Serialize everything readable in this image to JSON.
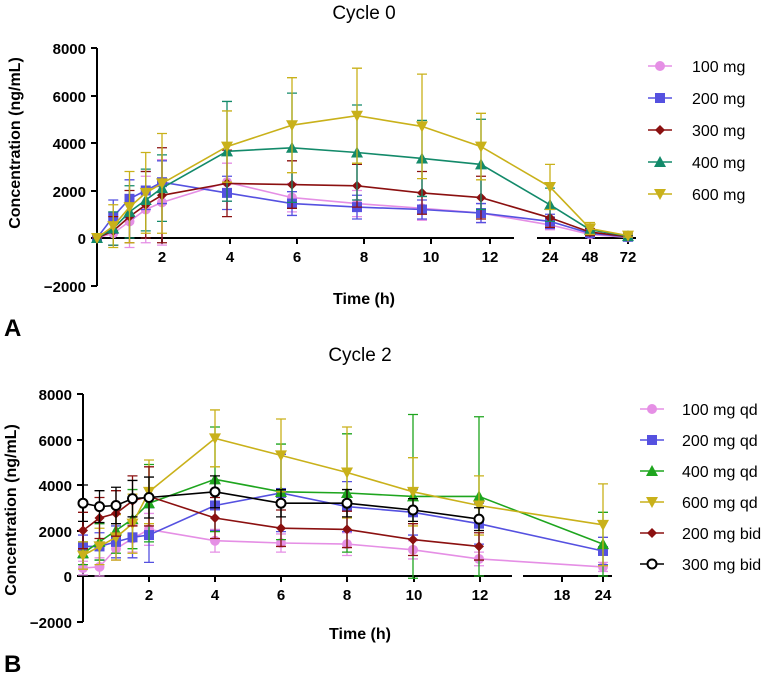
{
  "chart_data": [
    {
      "type": "line",
      "panel_label": "A",
      "title": "Cycle 0",
      "xlabel": "Time (h)",
      "ylabel": "Concentration (ng/mL)",
      "ylim": [
        -2000,
        8000
      ],
      "y_ticks": [
        "8000",
        "6000",
        "4000",
        "2000",
        "0",
        "−2000"
      ],
      "y_tick_values": [
        8000,
        6000,
        4000,
        2000,
        0,
        -2000
      ],
      "x_segments": [
        {
          "range": [
            0,
            13
          ],
          "ticks": [
            2,
            4,
            6,
            8,
            10,
            12
          ],
          "tick_labels": [
            "2",
            "4",
            "6",
            "8",
            "10",
            "12"
          ]
        },
        {
          "points": [
            24,
            48,
            72
          ],
          "tick_labels": [
            "24",
            "48",
            "72"
          ]
        }
      ],
      "series": [
        {
          "name": "100 mg",
          "color": "#e58fe5",
          "marker": "circle",
          "x": [
            0,
            0.5,
            1,
            1.5,
            2,
            4,
            6,
            8,
            10,
            12,
            24,
            48,
            72
          ],
          "y": [
            0,
            200,
            700,
            1200,
            1500,
            2350,
            1700,
            1450,
            1250,
            1050,
            550,
            150,
            30
          ],
          "err": [
            0,
            500,
            1100,
            1400,
            1800,
            800,
            600,
            550,
            500,
            400,
            200,
            80,
            20
          ]
        },
        {
          "name": "200 mg",
          "color": "#5551e0",
          "marker": "square",
          "x": [
            0,
            0.5,
            1,
            1.5,
            2,
            4,
            6,
            8,
            10,
            12,
            24,
            48,
            72
          ],
          "y": [
            0,
            900,
            1650,
            2000,
            2350,
            1900,
            1450,
            1300,
            1200,
            1050,
            700,
            200,
            50
          ],
          "err": [
            0,
            700,
            800,
            800,
            900,
            700,
            500,
            500,
            400,
            400,
            300,
            100,
            30
          ]
        },
        {
          "name": "300 mg",
          "color": "#8b1010",
          "marker": "diamond",
          "x": [
            0,
            0.5,
            1,
            1.5,
            2,
            4,
            6,
            8,
            10,
            12,
            24,
            48,
            72
          ],
          "y": [
            0,
            300,
            900,
            1400,
            1800,
            2300,
            2250,
            2200,
            1900,
            1700,
            850,
            250,
            60
          ],
          "err": [
            0,
            600,
            1100,
            1400,
            2000,
            1400,
            1000,
            900,
            900,
            900,
            400,
            150,
            40
          ]
        },
        {
          "name": "400 mg",
          "color": "#138a6a",
          "marker": "triangle-up",
          "x": [
            0,
            0.5,
            1,
            1.5,
            2,
            4,
            6,
            8,
            10,
            12,
            24,
            48,
            72
          ],
          "y": [
            0,
            400,
            1100,
            1600,
            2100,
            3650,
            3800,
            3600,
            3350,
            3100,
            1400,
            350,
            80
          ],
          "err": [
            0,
            700,
            1100,
            1300,
            1400,
            2100,
            2300,
            2000,
            1600,
            1900,
            700,
            200,
            50
          ]
        },
        {
          "name": "600 mg",
          "color": "#c9b11a",
          "marker": "triangle-down",
          "x": [
            0,
            0.5,
            1,
            1.5,
            2,
            4,
            6,
            8,
            10,
            12,
            24,
            48,
            72
          ],
          "y": [
            0,
            500,
            1300,
            1900,
            2300,
            3850,
            4750,
            5150,
            4700,
            3850,
            2150,
            400,
            100
          ],
          "err": [
            0,
            900,
            1500,
            1700,
            2100,
            1500,
            2000,
            2000,
            2200,
            1400,
            950,
            250,
            60
          ]
        }
      ]
    },
    {
      "type": "line",
      "panel_label": "B",
      "title": "Cycle 2",
      "xlabel": "Time (h)",
      "ylabel": "Concentration (ng/mL)",
      "ylim": [
        -2000,
        8000
      ],
      "y_ticks": [
        "8000",
        "6000",
        "4000",
        "2000",
        "0",
        "−2000"
      ],
      "y_tick_values": [
        8000,
        6000,
        4000,
        2000,
        0,
        -2000
      ],
      "x_segments": [
        {
          "range": [
            0,
            13
          ],
          "ticks": [
            2,
            4,
            6,
            8,
            10,
            12
          ],
          "tick_labels": [
            "2",
            "4",
            "6",
            "8",
            "10",
            "12"
          ]
        },
        {
          "range": [
            15.5,
            24.5
          ],
          "ticks": [
            18,
            24
          ],
          "tick_labels": [
            "18",
            "24"
          ]
        }
      ],
      "series": [
        {
          "name": "100 mg qd",
          "color": "#e58fe5",
          "marker": "circle",
          "x": [
            0,
            0.5,
            1,
            1.5,
            2,
            4,
            6,
            8,
            10,
            12,
            24
          ],
          "y": [
            350,
            400,
            1200,
            1650,
            2050,
            1550,
            1450,
            1400,
            1150,
            750,
            400
          ],
          "err": [
            300,
            400,
            500,
            600,
            700,
            500,
            400,
            500,
            400,
            300,
            200
          ]
        },
        {
          "name": "200 mg qd",
          "color": "#5551e0",
          "marker": "square",
          "x": [
            0,
            0.5,
            1,
            1.5,
            2,
            4,
            6,
            8,
            10,
            12,
            24
          ],
          "y": [
            1300,
            1300,
            1500,
            1700,
            1800,
            3100,
            3650,
            3050,
            2800,
            2300,
            1100
          ],
          "err": [
            500,
            600,
            700,
            900,
            1200,
            1100,
            1700,
            1100,
            1000,
            900,
            600
          ]
        },
        {
          "name": "400 mg qd",
          "color": "#1ea51e",
          "marker": "triangle-up",
          "x": [
            0,
            0.5,
            1,
            1.5,
            2,
            4,
            6,
            8,
            10,
            12,
            24
          ],
          "y": [
            1000,
            1500,
            2000,
            2500,
            3200,
            4250,
            3700,
            3650,
            3500,
            3500,
            1400
          ],
          "err": [
            500,
            800,
            1000,
            1300,
            1700,
            2300,
            2100,
            2600,
            3600,
            3500,
            1400
          ]
        },
        {
          "name": "600 mg qd",
          "color": "#c9b11a",
          "marker": "triangle-down",
          "x": [
            0,
            0.5,
            1,
            1.5,
            2,
            4,
            6,
            8,
            10,
            12,
            24
          ],
          "y": [
            900,
            1300,
            1700,
            2300,
            3700,
            6050,
            5300,
            4550,
            3700,
            3100,
            2250
          ],
          "err": [
            600,
            800,
            1000,
            1300,
            1400,
            1250,
            1600,
            2000,
            1500,
            1300,
            1800
          ]
        },
        {
          "name": "200 mg bid",
          "color": "#8b1010",
          "marker": "diamond",
          "x": [
            0,
            0.5,
            1,
            1.5,
            2,
            4,
            6,
            8,
            10,
            12
          ],
          "y": [
            2000,
            2550,
            2750,
            3300,
            3500,
            2550,
            2100,
            2050,
            1600,
            1300
          ],
          "err": [
            800,
            900,
            1000,
            1100,
            1300,
            900,
            800,
            800,
            700,
            600
          ]
        },
        {
          "name": "300 mg bid",
          "color": "#000000",
          "marker": "open-circle",
          "x": [
            0,
            0.5,
            1,
            1.5,
            2,
            4,
            6,
            8,
            10,
            12
          ],
          "y": [
            3200,
            3050,
            3100,
            3400,
            3450,
            3700,
            3200,
            3200,
            2900,
            2500
          ],
          "err": [
            800,
            700,
            800,
            800,
            900,
            700,
            600,
            600,
            500,
            500
          ]
        }
      ]
    }
  ]
}
